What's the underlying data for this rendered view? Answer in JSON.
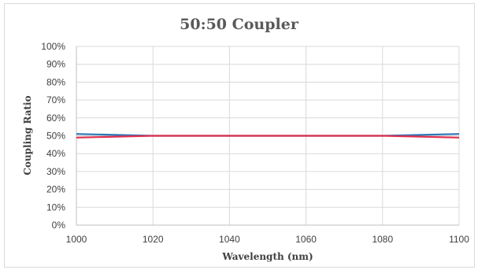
{
  "chart_data": {
    "type": "line",
    "title": "50:50 Coupler",
    "xlabel": "Wavelength (nm)",
    "ylabel": "Coupling Ratio",
    "xlim": [
      1000,
      1100
    ],
    "ylim": [
      0,
      100
    ],
    "x_ticks": [
      1000,
      1020,
      1040,
      1060,
      1080,
      1100
    ],
    "y_ticks": [
      0,
      10,
      20,
      30,
      40,
      50,
      60,
      70,
      80,
      90,
      100
    ],
    "y_tick_labels": [
      "0%",
      "10%",
      "20%",
      "30%",
      "40%",
      "50%",
      "60%",
      "70%",
      "80%",
      "90%",
      "100%"
    ],
    "grid": true,
    "legend": "none",
    "x": [
      1000,
      1020,
      1040,
      1060,
      1080,
      1100
    ],
    "series": [
      {
        "color": "#2e75b6",
        "values": [
          51,
          50,
          50,
          50,
          50,
          51
        ]
      },
      {
        "color": "#e0304e",
        "values": [
          49,
          50,
          50,
          50,
          50,
          49
        ]
      }
    ]
  },
  "colors": {
    "grid": "#d9d9d9",
    "axis": "#bfbfbf",
    "text": "#404040"
  }
}
